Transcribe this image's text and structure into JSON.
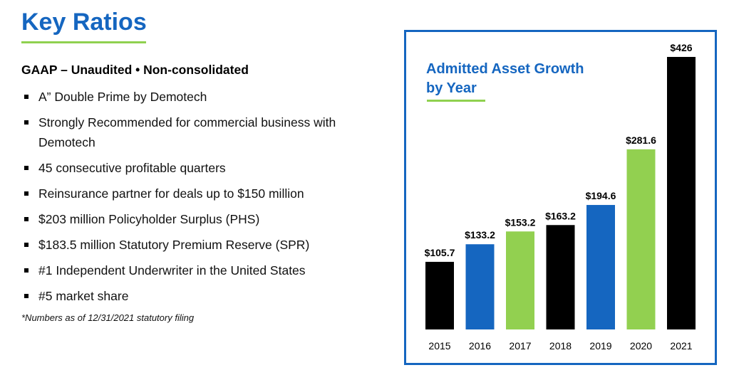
{
  "page_title": "Key Ratios",
  "subheading": "GAAP – Unaudited • Non-consolidated",
  "bullets": [
    "A” Double Prime by Demotech",
    "Strongly Recommended for commercial business with Demotech",
    "45 consecutive profitable quarters",
    "Reinsurance partner for deals up to $150 million",
    "$203 million Policyholder Surplus (PHS)",
    "$183.5 million Statutory Premium Reserve (SPR)",
    "#1 Independent Underwriter in the United States",
    "#5 market share"
  ],
  "footnote": "*Numbers as of 12/31/2021 statutory filing",
  "colors": {
    "title_blue": "#1566c0",
    "accent_green": "#8fd14f",
    "bar_black": "#000000",
    "bar_blue": "#1566c0",
    "bar_green": "#92d050"
  },
  "chart_data": {
    "type": "bar",
    "title_line1": "Admitted Asset Growth",
    "title_line2": "by Year",
    "categories": [
      "2015",
      "2016",
      "2017",
      "2018",
      "2019",
      "2020",
      "2021"
    ],
    "values": [
      105.7,
      133.2,
      153.2,
      163.2,
      194.6,
      281.6,
      426
    ],
    "value_labels": [
      "$105.7",
      "$133.2",
      "$153.2",
      "$163.2",
      "$194.6",
      "$281.6",
      "$426"
    ],
    "bar_colors": [
      "#000000",
      "#1566c0",
      "#92d050",
      "#000000",
      "#1566c0",
      "#92d050",
      "#000000"
    ],
    "ylim": [
      0,
      426
    ],
    "grid": false,
    "legend": "none"
  }
}
